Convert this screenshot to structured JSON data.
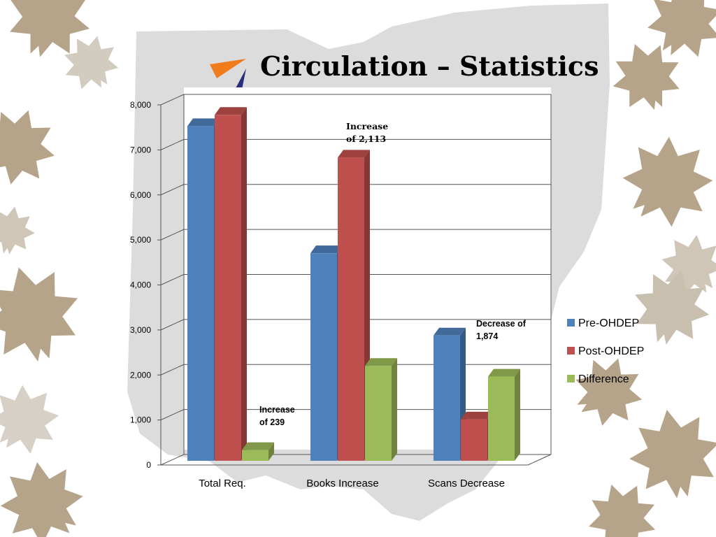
{
  "slide": {
    "title": "Circulation – Statistics"
  },
  "colors": {
    "pre": "#4f81bd",
    "post": "#c0504d",
    "diff": "#9bbb59",
    "leaf": "#b5a38a",
    "map": "#dcdcdc"
  },
  "chart_data": {
    "type": "bar",
    "title": "",
    "xlabel": "",
    "ylabel": "",
    "ylim": [
      0,
      8000
    ],
    "yticks": [
      "0",
      "1,000",
      "2,000",
      "3,000",
      "4,000",
      "5,000",
      "6,000",
      "7,000",
      "8,000"
    ],
    "categories": [
      "Total Req.",
      "Books Increase",
      "Scans Decrease"
    ],
    "series": [
      {
        "name": "Pre-OHDEP",
        "values": [
          7450,
          4620,
          2790
        ]
      },
      {
        "name": "Post-OHDEP",
        "values": [
          7700,
          6750,
          920
        ]
      },
      {
        "name": "Difference",
        "values": [
          239,
          2113,
          1874
        ]
      }
    ],
    "legend_position": "right",
    "grid": true,
    "annotations": [
      {
        "lines": [
          "Increase",
          "of 239"
        ]
      },
      {
        "lines": [
          "Increase",
          "of 2,113"
        ]
      },
      {
        "lines": [
          "Decrease of",
          "1,874"
        ]
      }
    ]
  }
}
